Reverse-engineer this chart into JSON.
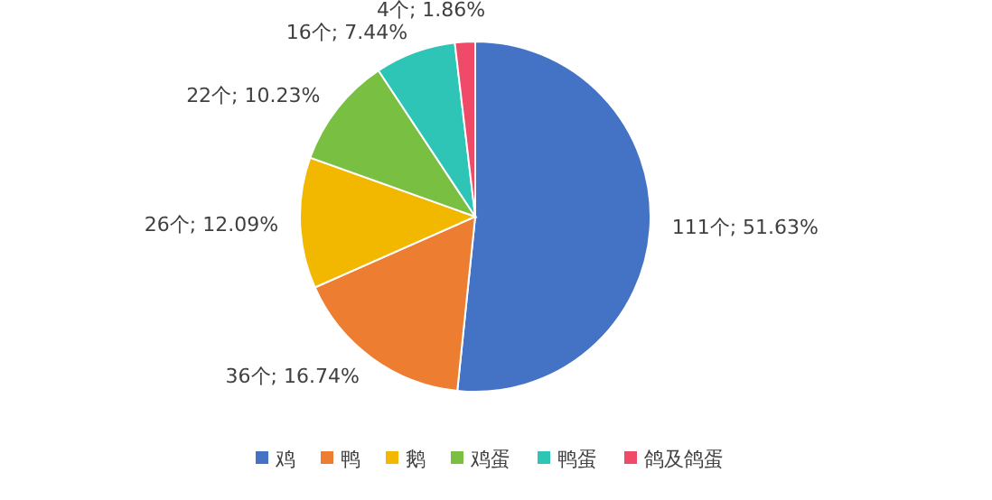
{
  "chart_data": {
    "type": "pie",
    "categories": [
      "鸡",
      "鸭",
      "鹅",
      "鸡蛋",
      "鸭蛋",
      "鸽及鸽蛋"
    ],
    "values": [
      111,
      36,
      26,
      22,
      16,
      4
    ],
    "colors": [
      "#4472c4",
      "#ed7d31",
      "#f2b800",
      "#79bf41",
      "#2ec4b6",
      "#ef4a67"
    ],
    "value_labels": [
      "111个; 51.63%",
      "36个; 16.74%",
      "26个; 12.09%",
      "22个; 10.23%",
      "16个; 7.44%",
      "4个; 1.86%"
    ],
    "legend": "bottom"
  }
}
